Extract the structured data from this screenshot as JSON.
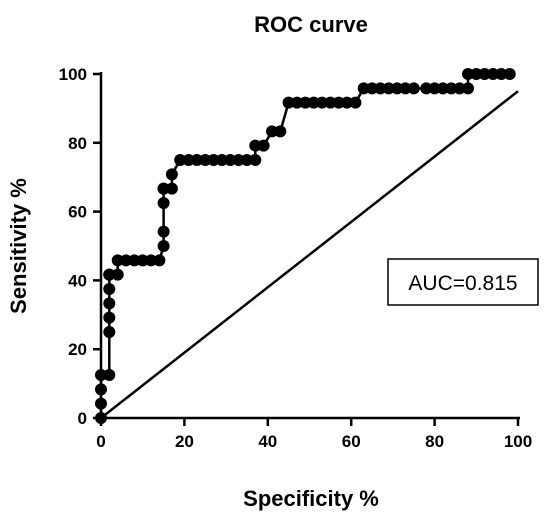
{
  "chart_data": {
    "type": "line",
    "title": "ROC curve",
    "xlabel": "Specificity %",
    "ylabel": "Sensitivity %",
    "xlim": [
      0,
      100
    ],
    "ylim": [
      0,
      100
    ],
    "x_ticks": [
      "0",
      "20",
      "40",
      "60",
      "80",
      "100"
    ],
    "y_ticks": [
      "0",
      "20",
      "40",
      "60",
      "80",
      "100"
    ],
    "grid": false,
    "legend": "none",
    "annotation": "AUC=0.815",
    "colors": {
      "line": "#000000",
      "marker": "#000000",
      "reference": "#000000"
    },
    "series": [
      {
        "type": "line-markers",
        "x": [
          0,
          0,
          0,
          0,
          2,
          2,
          2,
          2,
          2,
          2,
          2,
          4,
          4,
          6,
          8,
          10,
          12,
          14,
          15,
          15,
          15,
          15,
          15,
          17,
          17,
          19,
          21,
          23,
          25,
          27,
          29,
          31,
          33,
          35,
          37,
          37,
          39,
          41,
          43,
          45,
          47,
          49,
          51,
          53,
          55,
          57,
          59,
          61,
          63,
          65,
          67,
          69,
          71,
          73,
          75,
          78,
          80,
          82,
          84,
          86,
          88,
          88,
          90,
          92,
          94,
          96,
          98
        ],
        "y": [
          0,
          4.2,
          8.3,
          12.5,
          12.5,
          25,
          29.2,
          33.3,
          37.5,
          41.7,
          41.7,
          41.7,
          45.8,
          45.8,
          45.8,
          45.8,
          45.8,
          45.8,
          50,
          54.2,
          62.5,
          66.7,
          66.7,
          66.7,
          70.8,
          75,
          75,
          75,
          75,
          75,
          75,
          75,
          75,
          75,
          75,
          79.2,
          79.2,
          83.3,
          83.3,
          91.7,
          91.7,
          91.7,
          91.7,
          91.7,
          91.7,
          91.7,
          91.7,
          91.7,
          95.8,
          95.8,
          95.8,
          95.8,
          95.8,
          95.8,
          95.8,
          95.8,
          95.8,
          95.8,
          95.8,
          95.8,
          95.8,
          100,
          100,
          100,
          100,
          100,
          100
        ]
      },
      {
        "type": "reference-line",
        "x": [
          0,
          100
        ],
        "y": [
          0,
          95
        ]
      }
    ]
  }
}
